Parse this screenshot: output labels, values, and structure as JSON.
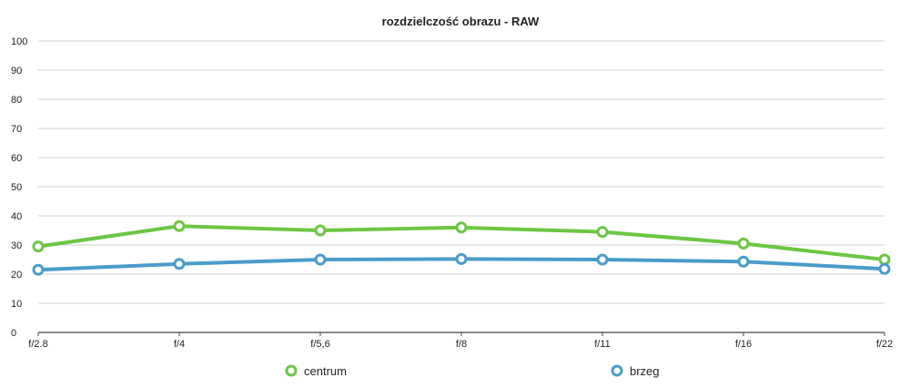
{
  "chart_data": {
    "type": "line",
    "title": "rozdzielczość obrazu - RAW",
    "categories": [
      "f/2.8",
      "f/4",
      "f/5,6",
      "f/8",
      "f/11",
      "f/16",
      "f/22"
    ],
    "ylim": [
      0,
      100
    ],
    "yticks": [
      "0",
      "10",
      "20",
      "30",
      "40",
      "50",
      "60",
      "70",
      "80",
      "90",
      "100"
    ],
    "grid": true,
    "legend_position": "bottom",
    "series": [
      {
        "name": "centrum",
        "color": "#6cc644",
        "values": [
          29.5,
          36.5,
          35,
          36,
          34.5,
          30.5,
          25
        ]
      },
      {
        "name": "brzeg",
        "color": "#4a9cc9",
        "values": [
          21.5,
          23.5,
          25,
          25.2,
          25,
          24.3,
          21.8
        ]
      }
    ]
  }
}
